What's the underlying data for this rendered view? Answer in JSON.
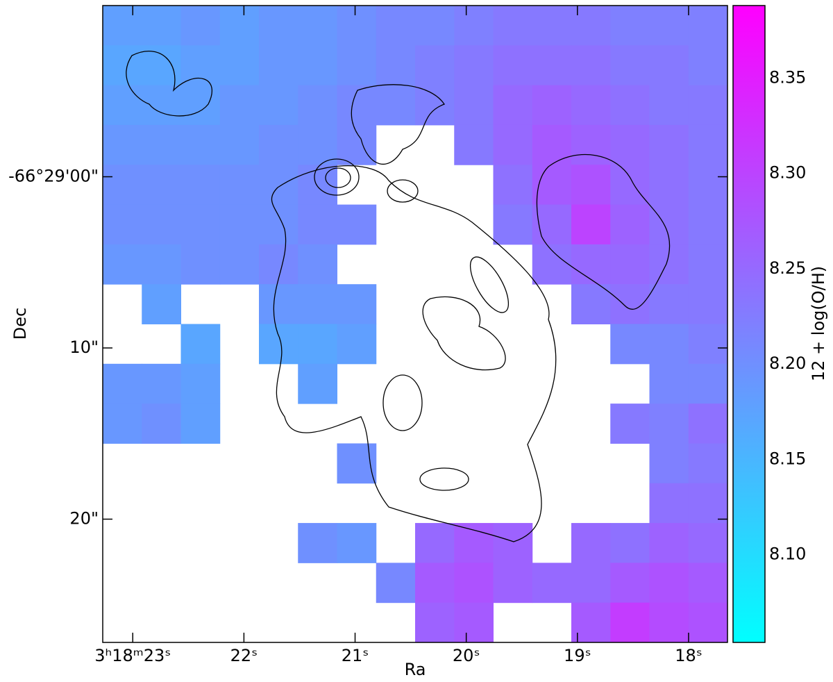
{
  "chart_data": {
    "type": "heatmap",
    "xlabel": "Ra",
    "ylabel": "Dec",
    "colorbar_label": "12 + log(O/H)",
    "colormap": "cool",
    "xlim": [
      23.27,
      17.65
    ],
    "xticks": [
      {
        "value": 23,
        "label": "3ʰ18ᵐ23ˢ"
      },
      {
        "value": 22,
        "label": "22ˢ"
      },
      {
        "value": 21,
        "label": "21ˢ"
      },
      {
        "value": 20,
        "label": "20ˢ"
      },
      {
        "value": 19,
        "label": "19ˢ"
      },
      {
        "value": 18,
        "label": "18ˢ"
      }
    ],
    "ylim": [
      27.2,
      -10.0
    ],
    "yticks": [
      {
        "value": 0,
        "label": "-66°29'00\""
      },
      {
        "value": 10,
        "label": "10\""
      },
      {
        "value": 20,
        "label": "20\""
      }
    ],
    "clim": [
      8.054,
      8.388
    ],
    "cticks": [
      {
        "value": 8.1,
        "label": "8.10"
      },
      8.15,
      {
        "value": 8.2,
        "label": "8.20"
      },
      8.25,
      {
        "value": 8.3,
        "label": "8.30"
      },
      8.35
    ],
    "z": [
      [
        8.18,
        8.18,
        8.19,
        8.18,
        8.19,
        8.19,
        8.2,
        8.21,
        8.21,
        8.22,
        8.23,
        8.23,
        8.23,
        8.22,
        8.22,
        8.22
      ],
      [
        8.17,
        8.17,
        8.18,
        8.18,
        8.19,
        8.19,
        8.2,
        8.21,
        8.22,
        8.23,
        8.24,
        8.24,
        8.24,
        8.23,
        8.23,
        8.22
      ],
      [
        8.18,
        8.18,
        8.18,
        8.19,
        8.19,
        8.2,
        8.21,
        8.21,
        8.22,
        8.23,
        8.25,
        8.26,
        8.25,
        8.24,
        8.23,
        8.23
      ],
      [
        8.19,
        8.19,
        8.19,
        8.19,
        8.2,
        8.2,
        8.21,
        null,
        null,
        8.23,
        8.25,
        8.27,
        8.26,
        8.25,
        8.24,
        8.23
      ],
      [
        8.2,
        8.2,
        8.2,
        8.2,
        8.2,
        8.21,
        null,
        null,
        null,
        null,
        8.24,
        8.27,
        8.28,
        8.25,
        8.24,
        8.23
      ],
      [
        8.2,
        8.2,
        8.2,
        8.2,
        8.2,
        8.21,
        8.21,
        null,
        null,
        null,
        8.23,
        8.25,
        8.3,
        8.26,
        8.24,
        8.23
      ],
      [
        8.19,
        8.19,
        8.2,
        8.2,
        8.21,
        8.2,
        null,
        null,
        null,
        null,
        null,
        8.24,
        8.25,
        8.25,
        8.24,
        8.23
      ],
      [
        null,
        8.18,
        null,
        null,
        8.19,
        8.19,
        8.19,
        null,
        null,
        null,
        null,
        null,
        8.23,
        8.24,
        8.23,
        8.23
      ],
      [
        null,
        null,
        8.17,
        null,
        8.17,
        8.17,
        8.18,
        null,
        null,
        null,
        null,
        null,
        null,
        8.21,
        8.21,
        8.22
      ],
      [
        8.19,
        8.19,
        8.18,
        null,
        null,
        8.18,
        null,
        null,
        null,
        null,
        null,
        null,
        null,
        null,
        8.21,
        8.21
      ],
      [
        8.19,
        8.2,
        8.18,
        null,
        null,
        null,
        null,
        null,
        null,
        null,
        null,
        null,
        null,
        8.23,
        8.22,
        8.24
      ],
      [
        null,
        null,
        null,
        null,
        null,
        null,
        8.2,
        null,
        null,
        null,
        null,
        null,
        null,
        null,
        8.22,
        8.23
      ],
      [
        null,
        null,
        null,
        null,
        null,
        null,
        null,
        null,
        null,
        null,
        null,
        null,
        null,
        null,
        8.24,
        8.24
      ],
      [
        null,
        null,
        null,
        null,
        null,
        8.2,
        8.19,
        null,
        8.25,
        8.27,
        8.26,
        null,
        8.25,
        8.24,
        8.26,
        8.25
      ],
      [
        null,
        null,
        null,
        null,
        null,
        null,
        null,
        8.21,
        8.27,
        8.28,
        8.26,
        8.25,
        8.25,
        8.27,
        8.28,
        8.27
      ],
      [
        null,
        null,
        null,
        null,
        null,
        null,
        null,
        null,
        8.26,
        8.27,
        null,
        null,
        8.27,
        8.31,
        8.29,
        8.28
      ]
    ]
  }
}
